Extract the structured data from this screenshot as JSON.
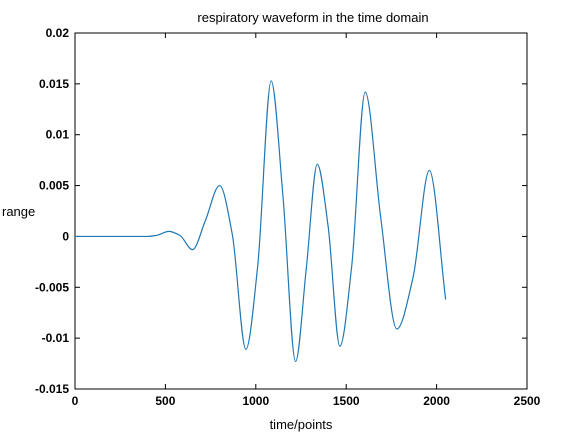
{
  "chart_data": {
    "type": "line",
    "title": "respiratory waveform in the time domain",
    "xlabel": "time/points",
    "ylabel": "range",
    "xlim": [
      0,
      2500
    ],
    "ylim": [
      -0.015,
      0.02
    ],
    "xticks": [
      0,
      500,
      1000,
      1500,
      2000,
      2500
    ],
    "yticks": [
      -0.015,
      -0.01,
      -0.005,
      0,
      0.005,
      0.01,
      0.015,
      0.02
    ],
    "xtick_labels": [
      "0",
      "500",
      "1000",
      "1500",
      "2000",
      "2500"
    ],
    "ytick_labels": [
      "-0.015",
      "-0.01",
      "-0.005",
      "0",
      "0.005",
      "0.01",
      "0.015",
      "0.02"
    ],
    "grid": false,
    "legend": "none",
    "series": [
      {
        "color": "#1f77b4",
        "x": [
          0,
          400,
          450,
          520,
          580,
          650,
          720,
          800,
          870,
          945,
          1010,
          1085,
          1150,
          1220,
          1280,
          1340,
          1400,
          1465,
          1530,
          1605,
          1690,
          1780,
          1870,
          1960,
          2050
        ],
        "y": [
          0,
          0,
          0.0001,
          0.0005,
          0.0001,
          -0.0013,
          0.0015,
          0.005,
          0.0002,
          -0.0111,
          -0.003,
          0.0153,
          0.004,
          -0.0123,
          -0.003,
          0.0071,
          0.001,
          -0.0108,
          -0.003,
          0.0142,
          0.002,
          -0.0091,
          -0.004,
          0.0065,
          -0.0062
        ]
      }
    ]
  }
}
